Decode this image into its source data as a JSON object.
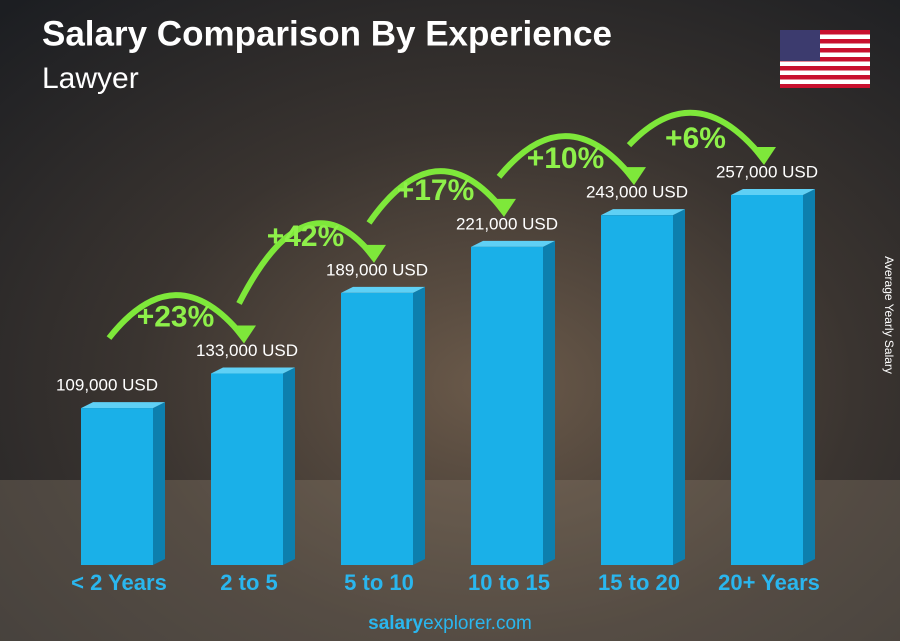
{
  "chart_data": {
    "type": "bar",
    "title": "Salary Comparison By Experience",
    "subtitle": "Lawyer",
    "y_label": "Average Yearly Salary",
    "categories": [
      "< 2 Years",
      "2 to 5",
      "5 to 10",
      "10 to 15",
      "15 to 20",
      "20+ Years"
    ],
    "values": [
      109000,
      133000,
      189000,
      221000,
      243000,
      257000
    ],
    "value_labels": [
      "109,000 USD",
      "133,000 USD",
      "189,000 USD",
      "221,000 USD",
      "243,000 USD",
      "257,000 USD"
    ],
    "annotations": [
      "+23%",
      "+42%",
      "+17%",
      "+10%",
      "+6%"
    ],
    "color": "#1ab0e8",
    "footer": [
      "salary",
      "explorer.com"
    ]
  }
}
